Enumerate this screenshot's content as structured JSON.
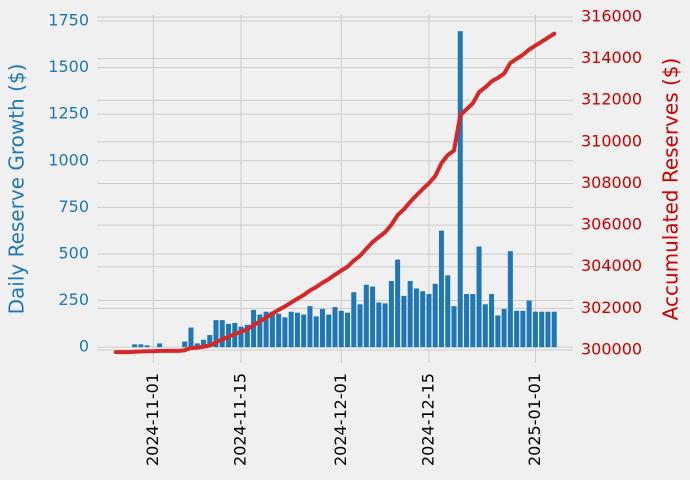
{
  "chart_data": {
    "type": "combo",
    "x": [
      "2024-10-26",
      "2024-10-27",
      "2024-10-28",
      "2024-10-29",
      "2024-10-30",
      "2024-10-31",
      "2024-11-01",
      "2024-11-02",
      "2024-11-03",
      "2024-11-04",
      "2024-11-05",
      "2024-11-06",
      "2024-11-07",
      "2024-11-08",
      "2024-11-09",
      "2024-11-10",
      "2024-11-11",
      "2024-11-12",
      "2024-11-13",
      "2024-11-14",
      "2024-11-15",
      "2024-11-16",
      "2024-11-17",
      "2024-11-18",
      "2024-11-19",
      "2024-11-20",
      "2024-11-21",
      "2024-11-22",
      "2024-11-23",
      "2024-11-24",
      "2024-11-25",
      "2024-11-26",
      "2024-11-27",
      "2024-11-28",
      "2024-11-29",
      "2024-11-30",
      "2024-12-01",
      "2024-12-02",
      "2024-12-03",
      "2024-12-04",
      "2024-12-05",
      "2024-12-06",
      "2024-12-07",
      "2024-12-08",
      "2024-12-09",
      "2024-12-10",
      "2024-12-11",
      "2024-12-12",
      "2024-12-13",
      "2024-12-14",
      "2024-12-15",
      "2024-12-16",
      "2024-12-17",
      "2024-12-18",
      "2024-12-19",
      "2024-12-20",
      "2024-12-21",
      "2024-12-22",
      "2024-12-23",
      "2024-12-24",
      "2024-12-25",
      "2024-12-26",
      "2024-12-27",
      "2024-12-28",
      "2024-12-29",
      "2024-12-30",
      "2024-12-31",
      "2025-01-01",
      "2025-01-02",
      "2025-01-03",
      "2025-01-04"
    ],
    "series": [
      {
        "type": "bar",
        "color": "#1f77b4",
        "values": [
          0,
          0,
          0,
          15,
          15,
          10,
          0,
          20,
          0,
          0,
          0,
          30,
          105,
          20,
          40,
          65,
          145,
          145,
          125,
          130,
          110,
          120,
          200,
          175,
          190,
          190,
          180,
          160,
          190,
          185,
          175,
          220,
          165,
          205,
          175,
          215,
          195,
          185,
          295,
          230,
          335,
          325,
          240,
          235,
          355,
          470,
          275,
          355,
          315,
          300,
          285,
          340,
          625,
          385,
          220,
          1695,
          285,
          285,
          540,
          230,
          285,
          170,
          205,
          515,
          195,
          195,
          250,
          190,
          190,
          190,
          190
        ]
      },
      {
        "type": "line",
        "axis": "y2",
        "color": "#d62728",
        "values": [
          299900,
          299900,
          299900,
          299915,
          299930,
          299940,
          299940,
          299960,
          299960,
          299960,
          299960,
          299990,
          300095,
          300115,
          300155,
          300220,
          300365,
          300510,
          300635,
          300765,
          300875,
          300995,
          301195,
          301370,
          301560,
          301750,
          301930,
          302090,
          302280,
          302465,
          302640,
          302860,
          303025,
          303230,
          303405,
          303620,
          303815,
          304000,
          304295,
          304525,
          304860,
          305185,
          305425,
          305660,
          306015,
          306485,
          306760,
          307115,
          307430,
          307730,
          308015,
          308355,
          308980,
          309365,
          309585,
          311280,
          311565,
          311850,
          312390,
          312620,
          312905,
          313075,
          313280,
          313795,
          313990,
          314185,
          314435,
          314625,
          314815,
          315005,
          315195
        ]
      }
    ],
    "y_label": "Daily Reserve Growth ($)",
    "y2_label": "Accumulated Reserves ($)",
    "y_label_color": "#1f77b4",
    "y2_label_color": "#cc0000",
    "xlim": [
      "2024-10-23",
      "2025-01-07"
    ],
    "xticks": [
      "2024-11-01",
      "2024-11-15",
      "2024-12-01",
      "2024-12-15",
      "2025-01-01"
    ],
    "ylim": [
      -85,
      1782
    ],
    "yticks": [
      0,
      250,
      500,
      750,
      1000,
      1250,
      1500,
      1750
    ],
    "y2lim": [
      299375,
      316096
    ],
    "y2ticks": [
      300000,
      302000,
      304000,
      306000,
      308000,
      310000,
      312000,
      314000,
      316000
    ],
    "grid": true
  }
}
